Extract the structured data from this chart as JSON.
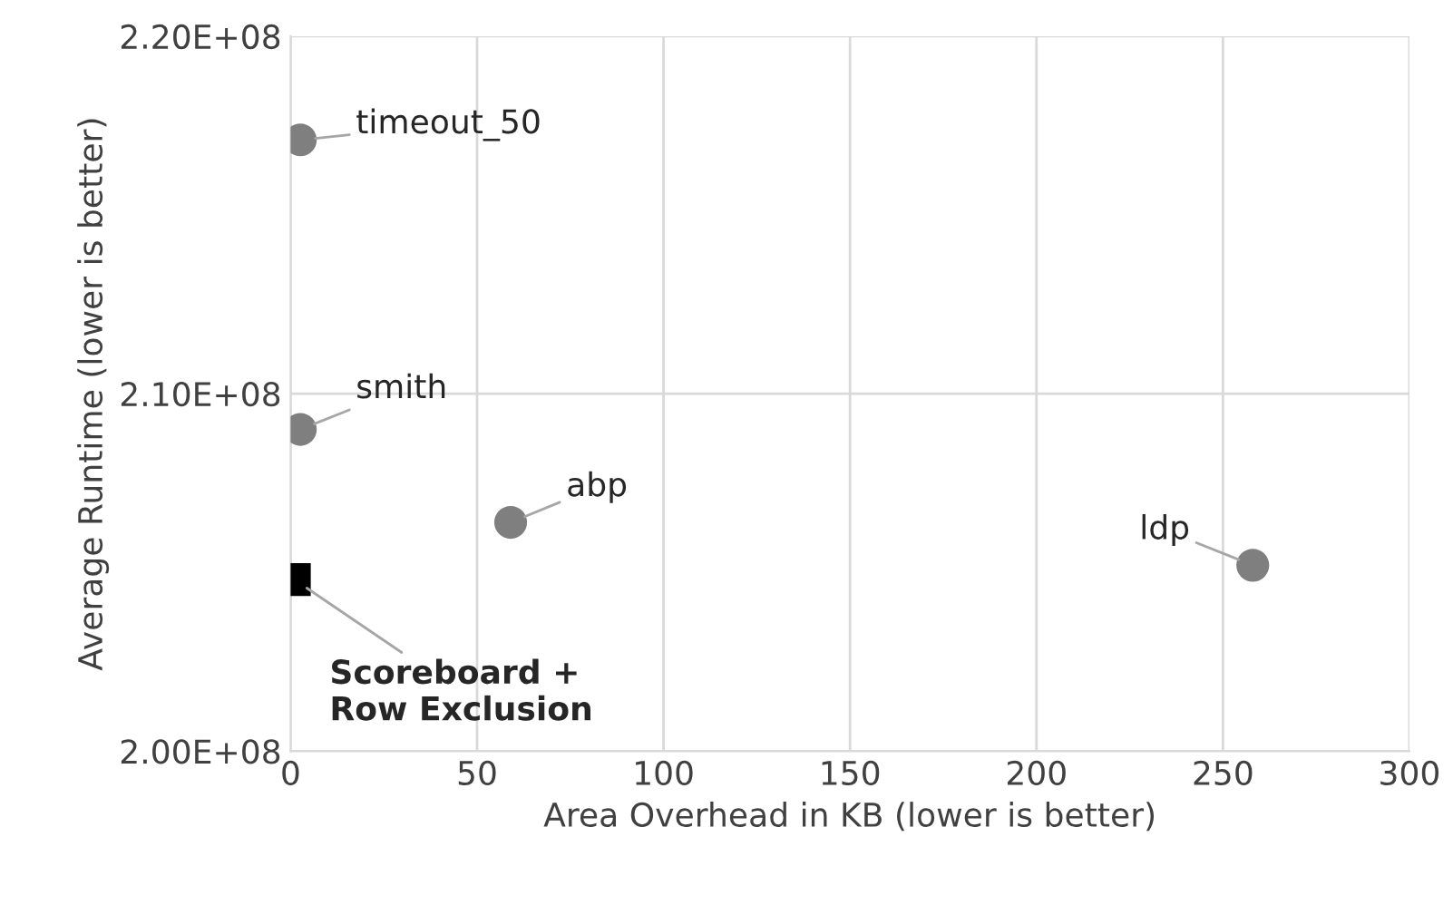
{
  "chart_data": {
    "type": "scatter",
    "xlabel": "Area Overhead in KB (lower is better)",
    "ylabel": "Average Runtime (lower is better)",
    "xlim": [
      0,
      300
    ],
    "xticks": [
      0,
      50,
      100,
      150,
      200,
      250,
      300
    ],
    "ylim": [
      200000000,
      220000000
    ],
    "yticks": [
      {
        "value": 200000000,
        "label": "2.00E+08"
      },
      {
        "value": 210000000,
        "label": "2.10E+08"
      },
      {
        "value": 220000000,
        "label": "2.20E+08"
      }
    ],
    "grid": true,
    "legend": false,
    "series": [
      {
        "color": "#7f7f7f",
        "marker": "circle",
        "x": [
          2.6,
          2.6,
          59,
          258
        ],
        "values": [
          217100000,
          209000000,
          206400000,
          205200000
        ]
      },
      {
        "color": "#000000",
        "marker": "square",
        "x": [
          1
        ],
        "values": [
          204800000
        ]
      }
    ],
    "annotations": [
      {
        "text": "timeout_50",
        "x": 2.6,
        "y": 217100000
      },
      {
        "text": "smith",
        "x": 2.6,
        "y": 209000000
      },
      {
        "text": "abp",
        "x": 59,
        "y": 206400000
      },
      {
        "text": "ldp",
        "x": 258,
        "y": 205200000
      },
      {
        "text": "Scoreboard +\nRow Exclusion",
        "x": 1,
        "y": 204800000
      }
    ]
  }
}
